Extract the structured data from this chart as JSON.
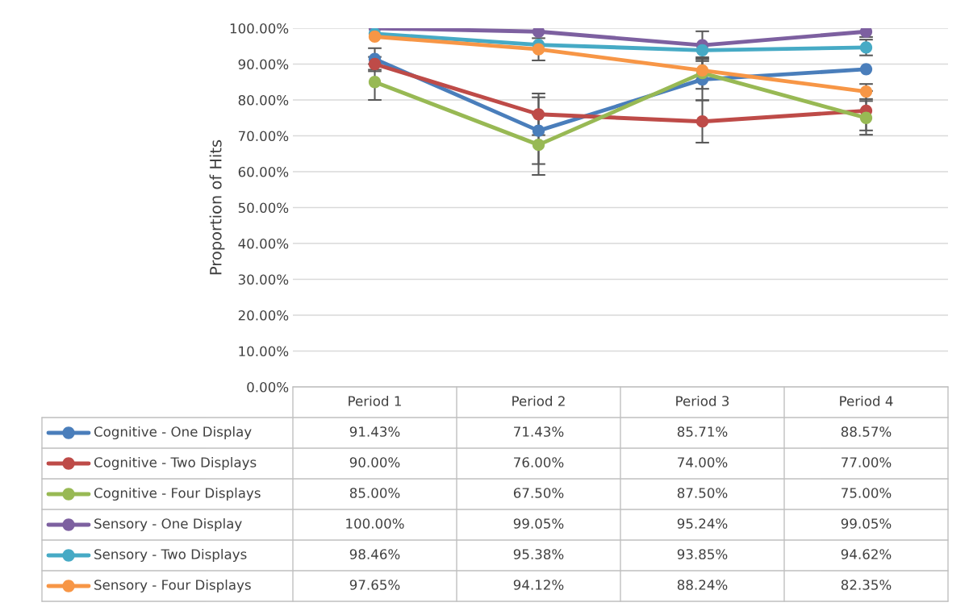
{
  "chart_data": {
    "type": "line",
    "ylabel": "Proportion of Hits",
    "categories": [
      "Period 1",
      "Period 2",
      "Period 3",
      "Period 4"
    ],
    "series": [
      {
        "name": "Cognitive - One Display",
        "color": "#4a7ebb",
        "values": [
          91.43,
          71.43,
          85.71,
          88.57
        ],
        "errors": [
          3,
          9.3,
          5.8,
          null
        ],
        "value_labels": [
          "91.43%",
          "71.43%",
          "85.71%",
          "88.57%"
        ]
      },
      {
        "name": "Cognitive - Two Displays",
        "color": "#be4b48",
        "values": [
          90.0,
          76.0,
          74.0,
          77.0
        ],
        "errors": [
          2,
          5.8,
          5.9,
          5.5
        ],
        "value_labels": [
          "90.00%",
          "76.00%",
          "74.00%",
          "77.00%"
        ]
      },
      {
        "name": "Cognitive - Four Displays",
        "color": "#98b954",
        "values": [
          85.0,
          67.5,
          87.5,
          75.0
        ],
        "errors": [
          5,
          8.4,
          4.4,
          4.7
        ],
        "value_labels": [
          "85.00%",
          "67.50%",
          "87.50%",
          "75.00%"
        ]
      },
      {
        "name": "Sensory - One Display",
        "color": "#7d60a0",
        "values": [
          100.0,
          99.05,
          95.24,
          99.05
        ],
        "errors": [
          null,
          null,
          3.9,
          1.5
        ],
        "value_labels": [
          "100.00%",
          "99.05%",
          "95.24%",
          "99.05%"
        ]
      },
      {
        "name": "Sensory - Two Displays",
        "color": "#46aac5",
        "values": [
          98.46,
          95.38,
          93.85,
          94.62
        ],
        "errors": [
          null,
          null,
          null,
          2.2
        ],
        "value_labels": [
          "98.46%",
          "95.38%",
          "93.85%",
          "94.62%"
        ]
      },
      {
        "name": "Sensory - Four Displays",
        "color": "#f79646",
        "values": [
          97.65,
          94.12,
          88.24,
          82.35
        ],
        "errors": [
          null,
          3.1,
          2.6,
          2.1
        ],
        "value_labels": [
          "97.65%",
          "94.12%",
          "88.24%",
          "82.35%"
        ]
      }
    ],
    "ylim": [
      0,
      100
    ],
    "yticks": [
      {
        "value": 0,
        "label": "0.00%"
      },
      {
        "value": 10,
        "label": "10.00%"
      },
      {
        "value": 20,
        "label": "20.00%"
      },
      {
        "value": 30,
        "label": "30.00%"
      },
      {
        "value": 40,
        "label": "40.00%"
      },
      {
        "value": 50,
        "label": "50.00%"
      },
      {
        "value": 60,
        "label": "60.00%"
      },
      {
        "value": 70,
        "label": "70.00%"
      },
      {
        "value": 80,
        "label": "80.00%"
      },
      {
        "value": 90,
        "label": "90.00%"
      },
      {
        "value": 100,
        "label": "100.00%"
      }
    ],
    "grid": "y",
    "legend": "bottom",
    "marker": "circle",
    "line_style": "solid"
  }
}
